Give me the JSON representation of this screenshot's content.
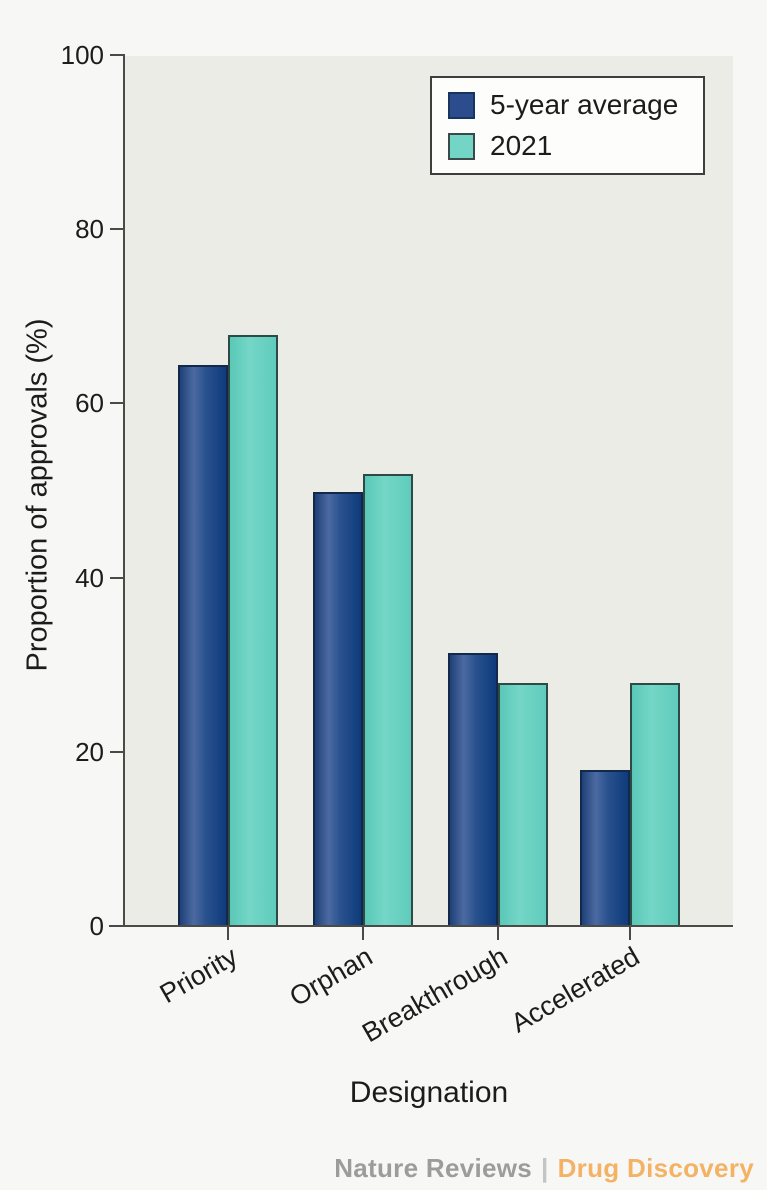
{
  "figure": {
    "background": "#f7f7f6",
    "plot_background": "#ecece7",
    "axis_color": "#4a4a47",
    "text_color": "#1c1c1c"
  },
  "chart_data": {
    "type": "bar",
    "title": "",
    "xlabel": "Designation",
    "ylabel": "Proportion of approvals (%)",
    "categories": [
      "Priority",
      "Orphan",
      "Breakthrough",
      "Accelerated"
    ],
    "series": [
      {
        "name": "5-year average",
        "color": "#2c4c8e",
        "values": [
          64.5,
          50,
          31.5,
          18
        ]
      },
      {
        "name": "2021",
        "color": "#6fd4c4",
        "values": [
          68,
          52,
          28,
          28
        ]
      }
    ],
    "ylim": [
      0,
      100
    ],
    "yticks": [
      0,
      20,
      40,
      60,
      80,
      100
    ],
    "grid": false,
    "legend_position": "top-right"
  },
  "footer": {
    "journal": "Nature Reviews",
    "separator": "|",
    "title": "Drug Discovery",
    "journal_color": "#9c9c9c",
    "title_color": "#f4b265"
  }
}
